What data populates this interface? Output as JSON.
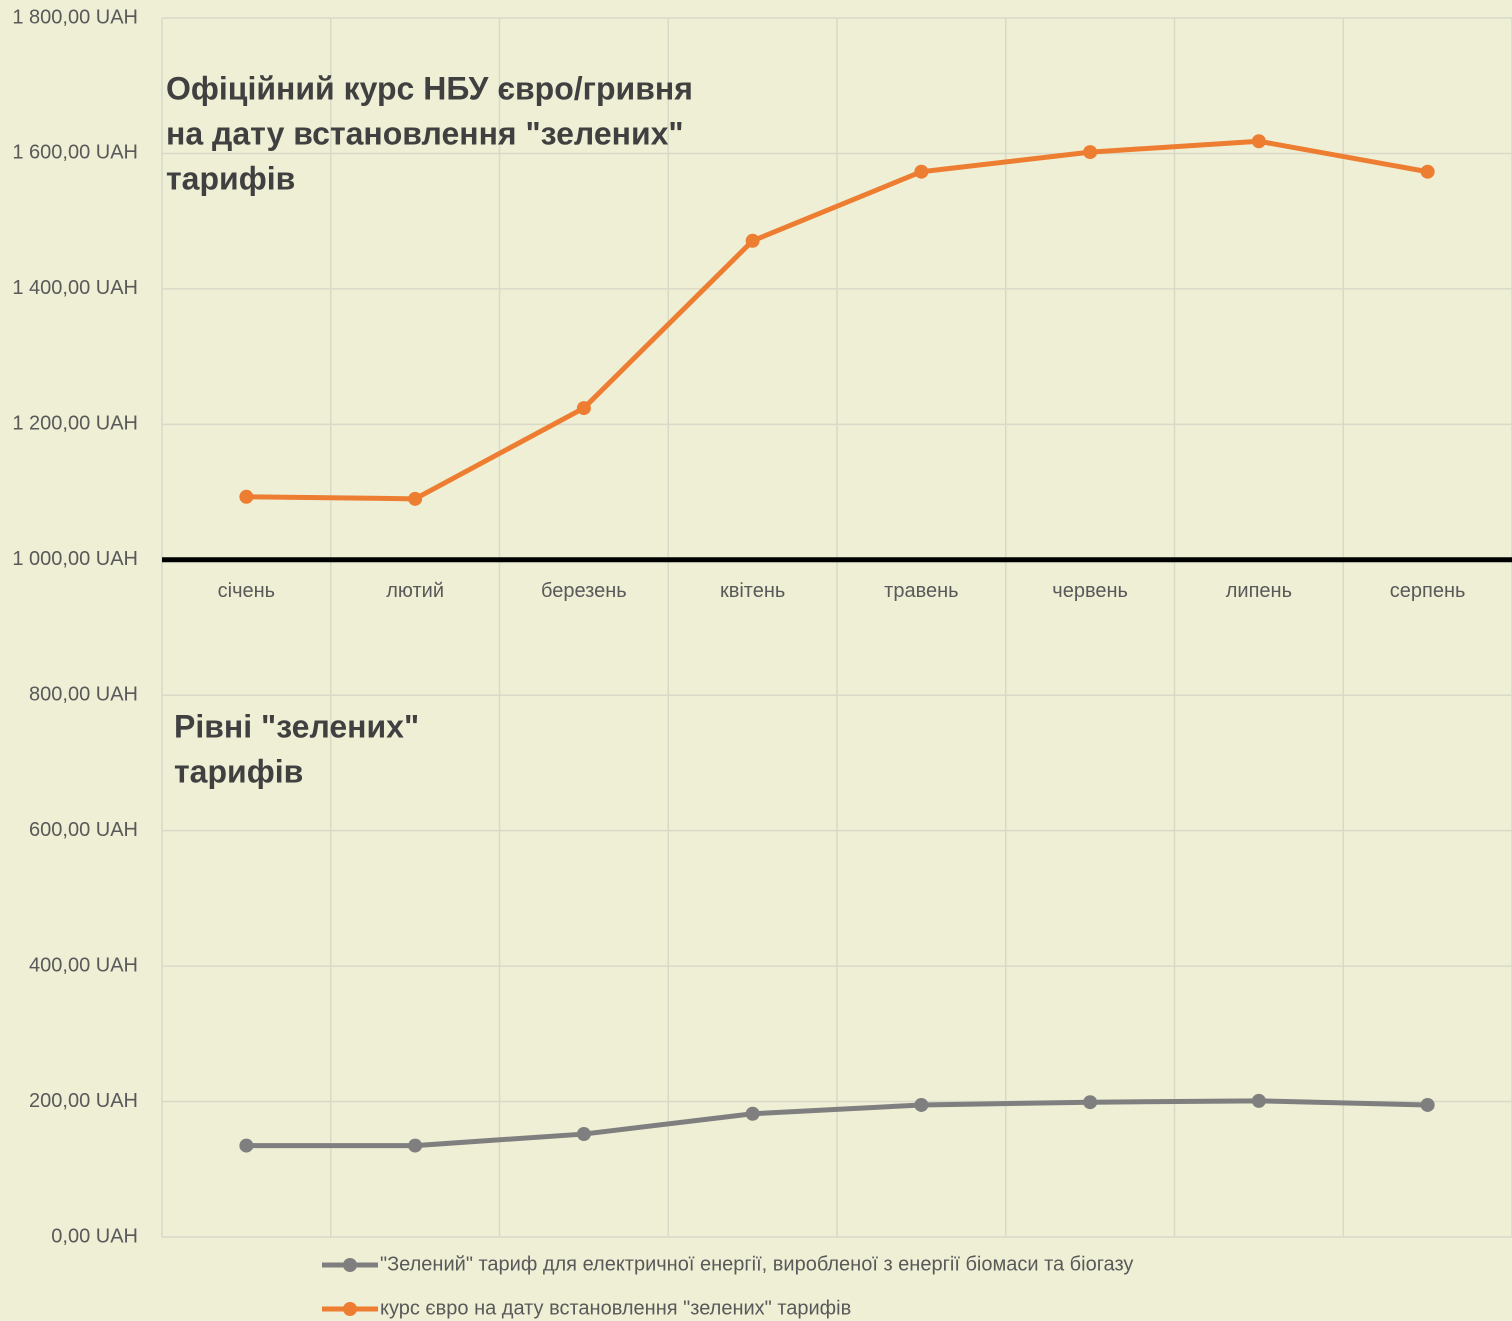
{
  "chart_data": {
    "type": "line",
    "annotations": [
      [
        "Офіційний курс НБУ євро/гривня",
        "на дату встановлення \"зелених\"",
        "тарифів"
      ],
      [
        "Рівні \"зелених\"",
        "тарифів"
      ]
    ],
    "categories": [
      "січень",
      "лютий",
      "березень",
      "квітень",
      "травень",
      "червень",
      "липень",
      "серпень"
    ],
    "series": [
      {
        "name": "\"Зелений\" тариф для електричної енергії, виробленої з енергії біомаси та біогазу",
        "color": "#7f7f7f",
        "values": [
          135,
          135,
          152,
          182,
          195,
          199,
          201,
          195
        ]
      },
      {
        "name": "курс євро на дату встановлення \"зелених\" тарифів",
        "color": "#ed7d31",
        "values": [
          1093,
          1090,
          1224,
          1471,
          1573,
          1602,
          1618,
          1573
        ]
      }
    ],
    "ylim": [
      0,
      1800
    ],
    "yticks": [
      {
        "value": 0,
        "label": "0,00 UAH"
      },
      {
        "value": 200,
        "label": "200,00 UAH"
      },
      {
        "value": 400,
        "label": "400,00 UAH"
      },
      {
        "value": 600,
        "label": "600,00 UAH"
      },
      {
        "value": 800,
        "label": "800,00 UAH"
      },
      {
        "value": 1000,
        "label": "1 000,00 UAH"
      },
      {
        "value": 1200,
        "label": "1 200,00 UAH"
      },
      {
        "value": 1400,
        "label": "1 400,00 UAH"
      },
      {
        "value": 1600,
        "label": "1 600,00 UAH"
      },
      {
        "value": 1800,
        "label": "1 800,00 UAH"
      }
    ],
    "x_axis_at": 1000,
    "grid": true,
    "legend": "bottom"
  }
}
